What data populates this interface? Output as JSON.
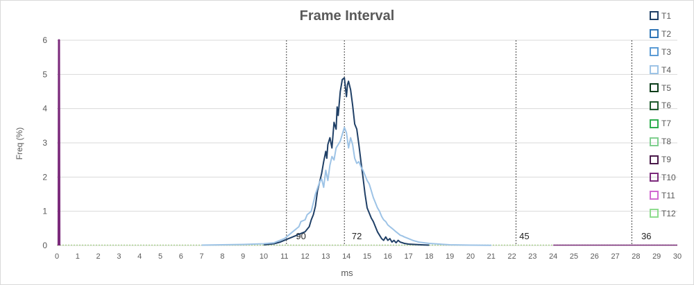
{
  "chart_data": {
    "type": "line",
    "title": "Frame Interval",
    "xlabel": "ms",
    "ylabel": "Freq (%)",
    "xlim": [
      0,
      30
    ],
    "ylim": [
      0,
      6
    ],
    "x_ticks": [
      "0",
      "1",
      "2",
      "3",
      "4",
      "5",
      "6",
      "7",
      "8",
      "9",
      "10",
      "11",
      "12",
      "13",
      "14",
      "15",
      "16",
      "17",
      "18",
      "19",
      "20",
      "21",
      "22",
      "23",
      "24",
      "25",
      "26",
      "27",
      "28",
      "29",
      "30"
    ],
    "y_ticks": [
      "0",
      "1",
      "2",
      "3",
      "4",
      "5",
      "6"
    ],
    "grid": "horizontal",
    "legend_position": "right",
    "legend": [
      {
        "name": "T1",
        "color": "#1f3f66"
      },
      {
        "name": "T2",
        "color": "#2e75b6"
      },
      {
        "name": "T3",
        "color": "#5b9bd5"
      },
      {
        "name": "T4",
        "color": "#9dc3e6"
      },
      {
        "name": "T5",
        "color": "#0b3d1a"
      },
      {
        "name": "T6",
        "color": "#1e5c2e"
      },
      {
        "name": "T7",
        "color": "#2fae4f"
      },
      {
        "name": "T8",
        "color": "#7fcf8f"
      },
      {
        "name": "T9",
        "color": "#4a1a4a"
      },
      {
        "name": "T10",
        "color": "#7b2a7b"
      },
      {
        "name": "T11",
        "color": "#d16ad1"
      },
      {
        "name": "T12",
        "color": "#8edc8e"
      }
    ],
    "reference_lines": [
      {
        "x": 11.1,
        "label": "90",
        "label_x": 11.8
      },
      {
        "x": 13.9,
        "label": "72",
        "label_x": 14.5
      },
      {
        "x": 22.2,
        "label": "45",
        "label_x": 22.6
      },
      {
        "x": 27.8,
        "label": "36",
        "label_x": 28.5
      }
    ],
    "series": [
      {
        "name": "T1",
        "color": "#1f3f66",
        "x": [
          10.0,
          10.5,
          10.8,
          11.0,
          11.2,
          11.4,
          11.6,
          11.8,
          12.0,
          12.2,
          12.3,
          12.4,
          12.5,
          12.6,
          12.7,
          12.8,
          12.9,
          13.0,
          13.05,
          13.1,
          13.2,
          13.3,
          13.4,
          13.5,
          13.55,
          13.6,
          13.7,
          13.8,
          13.9,
          14.0,
          14.05,
          14.1,
          14.2,
          14.3,
          14.4,
          14.5,
          14.6,
          14.7,
          14.8,
          14.9,
          15.0,
          15.1,
          15.2,
          15.3,
          15.4,
          15.5,
          15.6,
          15.7,
          15.8,
          15.9,
          16.0,
          16.1,
          16.2,
          16.3,
          16.4,
          16.5,
          16.6,
          16.8,
          17.0,
          17.3,
          17.6,
          18.0
        ],
        "y": [
          0.02,
          0.05,
          0.1,
          0.15,
          0.2,
          0.25,
          0.3,
          0.35,
          0.4,
          0.55,
          0.75,
          0.9,
          1.15,
          1.6,
          1.85,
          2.1,
          2.45,
          2.75,
          2.55,
          2.95,
          3.15,
          2.85,
          3.6,
          3.4,
          4.05,
          3.8,
          4.5,
          4.85,
          4.9,
          4.35,
          4.7,
          4.8,
          4.55,
          4.1,
          3.55,
          3.4,
          2.95,
          2.45,
          2.0,
          1.5,
          1.1,
          0.95,
          0.8,
          0.7,
          0.55,
          0.4,
          0.3,
          0.2,
          0.15,
          0.25,
          0.15,
          0.2,
          0.1,
          0.15,
          0.08,
          0.15,
          0.1,
          0.06,
          0.04,
          0.03,
          0.02,
          0.01
        ]
      },
      {
        "name": "T4",
        "color": "#9dc3e6",
        "x": [
          7.0,
          8.0,
          9.0,
          10.0,
          10.5,
          11.0,
          11.2,
          11.5,
          11.7,
          11.8,
          12.0,
          12.1,
          12.3,
          12.4,
          12.5,
          12.7,
          12.8,
          12.9,
          13.0,
          13.1,
          13.2,
          13.3,
          13.4,
          13.5,
          13.6,
          13.7,
          13.8,
          13.9,
          14.0,
          14.1,
          14.2,
          14.3,
          14.4,
          14.5,
          14.6,
          14.7,
          14.8,
          14.9,
          15.0,
          15.1,
          15.2,
          15.3,
          15.4,
          15.5,
          15.6,
          15.7,
          15.8,
          15.9,
          16.0,
          16.1,
          16.2,
          16.3,
          16.4,
          16.5,
          16.6,
          16.7,
          16.8,
          17.0,
          17.2,
          17.5,
          18.0,
          18.5,
          19.0,
          20.0,
          21.0
        ],
        "y": [
          0.01,
          0.02,
          0.03,
          0.05,
          0.08,
          0.2,
          0.3,
          0.45,
          0.55,
          0.7,
          0.75,
          0.9,
          1.0,
          1.25,
          1.5,
          1.85,
          1.95,
          1.7,
          2.2,
          1.9,
          2.35,
          2.6,
          2.5,
          2.85,
          2.95,
          3.05,
          3.25,
          3.45,
          3.3,
          2.85,
          3.15,
          2.95,
          2.55,
          2.4,
          2.45,
          2.3,
          2.2,
          2.05,
          1.9,
          1.8,
          1.6,
          1.4,
          1.25,
          1.1,
          1.0,
          0.85,
          0.75,
          0.7,
          0.6,
          0.55,
          0.5,
          0.45,
          0.4,
          0.35,
          0.3,
          0.28,
          0.25,
          0.2,
          0.15,
          0.1,
          0.06,
          0.04,
          0.02,
          0.01,
          0.005
        ]
      },
      {
        "name": "T10",
        "color": "#7b2a7b",
        "x": [
          0.08,
          0.1,
          0.12
        ],
        "y": [
          0,
          6,
          0
        ]
      }
    ]
  }
}
